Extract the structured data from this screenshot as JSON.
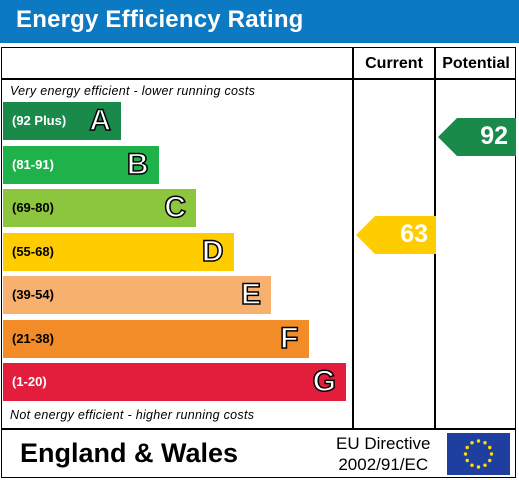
{
  "header": {
    "title": "Energy Efficiency Rating"
  },
  "columns": {
    "current": "Current",
    "potential": "Potential"
  },
  "notes": {
    "top": "Very energy efficient - lower running costs",
    "bottom": "Not energy efficient - higher running costs"
  },
  "footer": {
    "country": "England & Wales",
    "directive_line1": "EU Directive",
    "directive_line2": "2002/91/EC"
  },
  "chart_data": {
    "type": "bar",
    "title": "Energy Efficiency Rating",
    "bands": [
      {
        "range": "(92 Plus)",
        "letter": "A",
        "color": "#1a8a4a",
        "min": 92,
        "max": 100
      },
      {
        "range": "(81-91)",
        "letter": "B",
        "color": "#1fb24a",
        "min": 81,
        "max": 91
      },
      {
        "range": "(69-80)",
        "letter": "C",
        "color": "#8cc63f",
        "min": 69,
        "max": 80
      },
      {
        "range": "(55-68)",
        "letter": "D",
        "color": "#ffcc00",
        "min": 55,
        "max": 68
      },
      {
        "range": "(39-54)",
        "letter": "E",
        "color": "#f7b06e",
        "min": 39,
        "max": 54
      },
      {
        "range": "(21-38)",
        "letter": "F",
        "color": "#f28c28",
        "min": 21,
        "max": 38
      },
      {
        "range": "(1-20)",
        "letter": "G",
        "color": "#e31d3c",
        "min": 1,
        "max": 20
      }
    ],
    "current": {
      "value": 63,
      "band": "D",
      "color": "#ffcc00"
    },
    "potential": {
      "value": 92,
      "band": "A",
      "color": "#1a8a4a"
    }
  }
}
